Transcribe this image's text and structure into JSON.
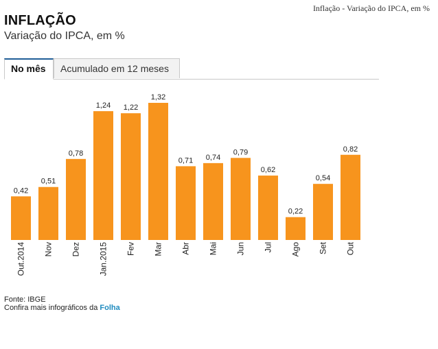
{
  "page": {
    "top_caption": "Inflação - Variação do IPCA, em %",
    "title": "INFLAÇÃO",
    "subtitle": "Variação do IPCA, em %"
  },
  "tabs": [
    {
      "label": "No mês",
      "active": true
    },
    {
      "label": "Acumulado em 12 meses",
      "active": false
    }
  ],
  "chart_data": {
    "type": "bar",
    "title": "INFLAÇÃO",
    "subtitle": "Variação do IPCA, em %",
    "xlabel": "",
    "ylabel": "",
    "grid": false,
    "categories": [
      "Out.2014",
      "Nov",
      "Dez",
      "Jan.2015",
      "Fev",
      "Mar",
      "Abr",
      "Mai",
      "Jun",
      "Jul",
      "Ago",
      "Set",
      "Out"
    ],
    "values": [
      0.42,
      0.51,
      0.78,
      1.24,
      1.22,
      1.32,
      0.71,
      0.74,
      0.79,
      0.62,
      0.22,
      0.54,
      0.82
    ],
    "value_labels": [
      "0,42",
      "0,51",
      "0,78",
      "1,24",
      "1,22",
      "1,32",
      "0,71",
      "0,74",
      "0,79",
      "0,62",
      "0,22",
      "0,54",
      "0,82"
    ],
    "ylim": [
      0,
      1.32
    ],
    "bar_color": "#f7941d"
  },
  "footer": {
    "source": "Fonte: IBGE",
    "more_prefix": "Confira mais infográficos da ",
    "more_link": "Folha"
  }
}
